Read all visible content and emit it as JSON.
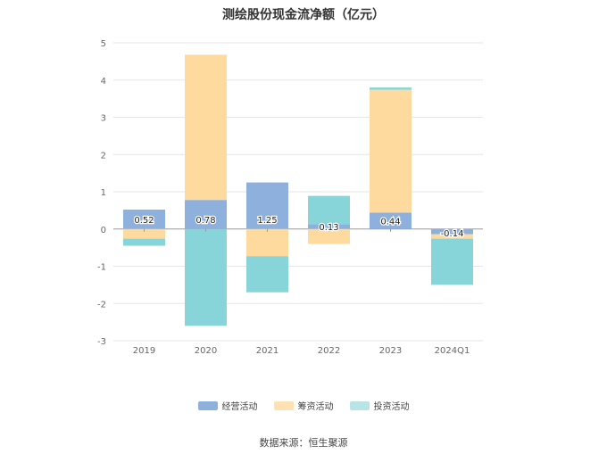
{
  "chart_data": {
    "type": "bar",
    "stacked": true,
    "title": "测绘股份现金流净额（亿元）",
    "categories": [
      "2019",
      "2020",
      "2021",
      "2022",
      "2023",
      "2024Q1"
    ],
    "ylim": [
      -3,
      5
    ],
    "yticks": [
      "5",
      "4",
      "3",
      "2",
      "1",
      "0",
      "-1",
      "-2",
      "-3"
    ],
    "grid": true,
    "legend_position": "bottom",
    "series": [
      {
        "name": "经营活动",
        "color": "#8EB0DC",
        "values": [
          0.52,
          0.78,
          1.25,
          0.13,
          0.44,
          -0.14
        ],
        "labels": [
          "0.52",
          "0.78",
          "1.25",
          "0.13",
          "0.44",
          "-0.14"
        ]
      },
      {
        "name": "筹资活动",
        "color": "#FFDA9E",
        "values": [
          -0.26,
          3.9,
          -0.73,
          -0.4,
          3.3,
          -0.12
        ]
      },
      {
        "name": "投资活动",
        "color": "#88D5D9",
        "values": [
          -0.19,
          -2.6,
          -0.97,
          0.76,
          0.06,
          -1.24
        ]
      }
    ],
    "source": "数据来源：恒生聚源"
  }
}
